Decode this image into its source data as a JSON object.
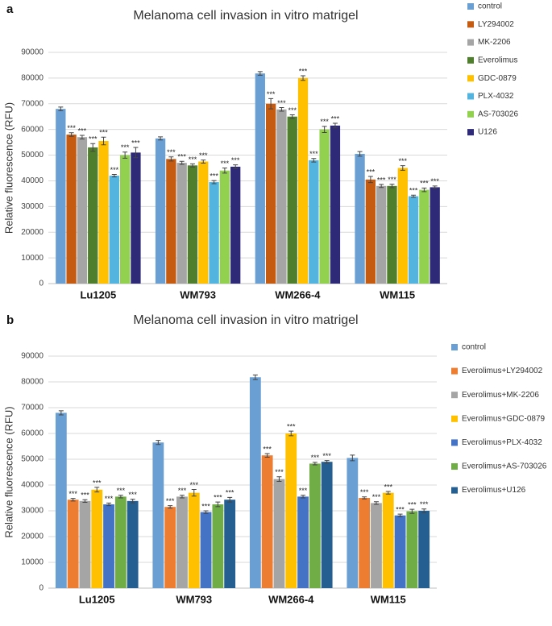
{
  "chart_data": [
    {
      "type": "bar",
      "panel_label": "a",
      "title": "Melanoma cell invasion in vitro matrigel",
      "y_label": "Relative fluorescence (RFU)",
      "categories": [
        "Lu1205",
        "WM793",
        "WM266-4",
        "WM115"
      ],
      "ylim": [
        0,
        90000
      ],
      "yticks": [
        0,
        10000,
        20000,
        30000,
        40000,
        50000,
        60000,
        70000,
        80000,
        90000
      ],
      "grid": true,
      "series": [
        {
          "name": "control",
          "color": "#6a9fd4",
          "values": [
            68000,
            56500,
            81800,
            50500
          ],
          "errors": [
            700,
            600,
            700,
            900
          ],
          "significance": [
            null,
            null,
            null,
            null
          ]
        },
        {
          "name": "LY294002",
          "color": "#c55a11",
          "values": [
            58000,
            48500,
            70000,
            40500
          ],
          "errors": [
            700,
            800,
            2000,
            1200
          ],
          "significance": [
            "***",
            "***",
            "***",
            "***"
          ]
        },
        {
          "name": "MK-2206",
          "color": "#a5a5a5",
          "values": [
            57000,
            47000,
            67800,
            38000
          ],
          "errors": [
            700,
            600,
            700,
            600
          ],
          "significance": [
            "***",
            "***",
            "***",
            "***"
          ]
        },
        {
          "name": "Everolimus",
          "color": "#4f7f2c",
          "values": [
            53000,
            46000,
            65000,
            38000
          ],
          "errors": [
            1500,
            600,
            700,
            700
          ],
          "significance": [
            "***",
            "***",
            "***",
            "***"
          ]
        },
        {
          "name": "GDC-0879",
          "color": "#ffc000",
          "values": [
            55500,
            47500,
            80000,
            45000
          ],
          "errors": [
            1500,
            600,
            900,
            900
          ],
          "significance": [
            "***",
            "***",
            "***",
            "***"
          ]
        },
        {
          "name": "PLX-4032",
          "color": "#53b4e0",
          "values": [
            42000,
            39500,
            48000,
            34000
          ],
          "errors": [
            500,
            600,
            700,
            400
          ],
          "significance": [
            "***",
            "***",
            "***",
            "***"
          ]
        },
        {
          "name": "AS-703026",
          "color": "#92d050",
          "values": [
            50000,
            44000,
            60000,
            36500
          ],
          "errors": [
            1200,
            1000,
            1200,
            700
          ],
          "significance": [
            "***",
            "***",
            "***",
            "***"
          ]
        },
        {
          "name": "U126",
          "color": "#2e2a78",
          "values": [
            51000,
            45500,
            61500,
            37500
          ],
          "errors": [
            2000,
            700,
            900,
            500
          ],
          "significance": [
            "***",
            "***",
            "***",
            "***"
          ]
        }
      ]
    },
    {
      "type": "bar",
      "panel_label": "b",
      "title": "Melanoma cell invasion in vitro matrigel",
      "y_label": "Relative fluorescence (RFU)",
      "categories": [
        "Lu1205",
        "WM793",
        "WM266-4",
        "WM115"
      ],
      "ylim": [
        0,
        90000
      ],
      "yticks": [
        0,
        10000,
        20000,
        30000,
        40000,
        50000,
        60000,
        70000,
        80000,
        90000
      ],
      "grid": true,
      "series": [
        {
          "name": "control",
          "color": "#6a9fd4",
          "values": [
            68000,
            56500,
            81800,
            50500
          ],
          "errors": [
            800,
            800,
            900,
            1100
          ],
          "significance": [
            null,
            null,
            null,
            null
          ]
        },
        {
          "name": "Everolimus+LY294002",
          "color": "#ed7d31",
          "values": [
            34300,
            31500,
            51500,
            35000
          ],
          "errors": [
            500,
            500,
            700,
            400
          ],
          "significance": [
            "***",
            "***",
            "***",
            "***"
          ]
        },
        {
          "name": "Everolimus+MK-2206",
          "color": "#a5a5a5",
          "values": [
            33800,
            35500,
            42300,
            33000
          ],
          "errors": [
            500,
            500,
            900,
            500
          ],
          "significance": [
            "***",
            "***",
            "***",
            "***"
          ]
        },
        {
          "name": "Everolimus+GDC-0879",
          "color": "#ffc000",
          "values": [
            38200,
            37000,
            60000,
            37000
          ],
          "errors": [
            900,
            1300,
            900,
            500
          ],
          "significance": [
            "***",
            "***",
            "***",
            "***"
          ]
        },
        {
          "name": "Everolimus+PLX-4032",
          "color": "#4472c4",
          "values": [
            32500,
            29500,
            35500,
            28200
          ],
          "errors": [
            500,
            500,
            500,
            500
          ],
          "significance": [
            "***",
            "***",
            "***",
            "***"
          ]
        },
        {
          "name": "Everolimus+AS-703026",
          "color": "#70ad47",
          "values": [
            35500,
            32500,
            48300,
            29800
          ],
          "errors": [
            500,
            900,
            500,
            800
          ],
          "significance": [
            "***",
            "***",
            "***",
            "***"
          ]
        },
        {
          "name": "Everolimus+U126",
          "color": "#255e91",
          "values": [
            33800,
            34300,
            49000,
            30000
          ],
          "errors": [
            700,
            900,
            500,
            700
          ],
          "significance": [
            "***",
            "***",
            "***",
            "***"
          ]
        }
      ]
    }
  ]
}
